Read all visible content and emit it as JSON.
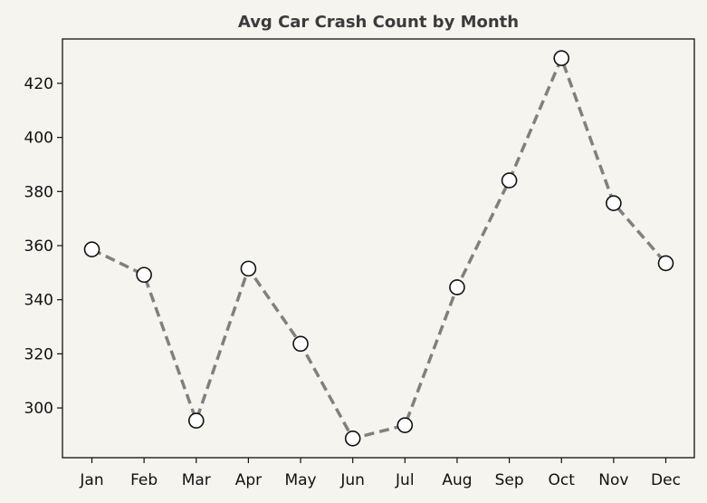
{
  "chart_data": {
    "type": "line",
    "title": "Avg Car Crash Count by Month",
    "xlabel": "",
    "ylabel": "",
    "categories": [
      "Jan",
      "Feb",
      "Mar",
      "Apr",
      "May",
      "Jun",
      "Jul",
      "Aug",
      "Sep",
      "Oct",
      "Nov",
      "Dec"
    ],
    "series": [
      {
        "values": [
          358.6,
          349.2,
          295.3,
          351.5,
          323.7,
          288.7,
          293.6,
          344.6,
          384.1,
          429.3,
          375.7,
          353.5
        ]
      }
    ],
    "ylim": [
      281.6,
      436.4
    ],
    "yticks": [
      300,
      320,
      340,
      360,
      380,
      400,
      420
    ],
    "grid": false,
    "colors": {
      "line": "#808080",
      "marker_fill": "#ffffff",
      "marker_edge": "#111111",
      "title": "#3b3b3b",
      "background": "#f5f4ef"
    }
  }
}
